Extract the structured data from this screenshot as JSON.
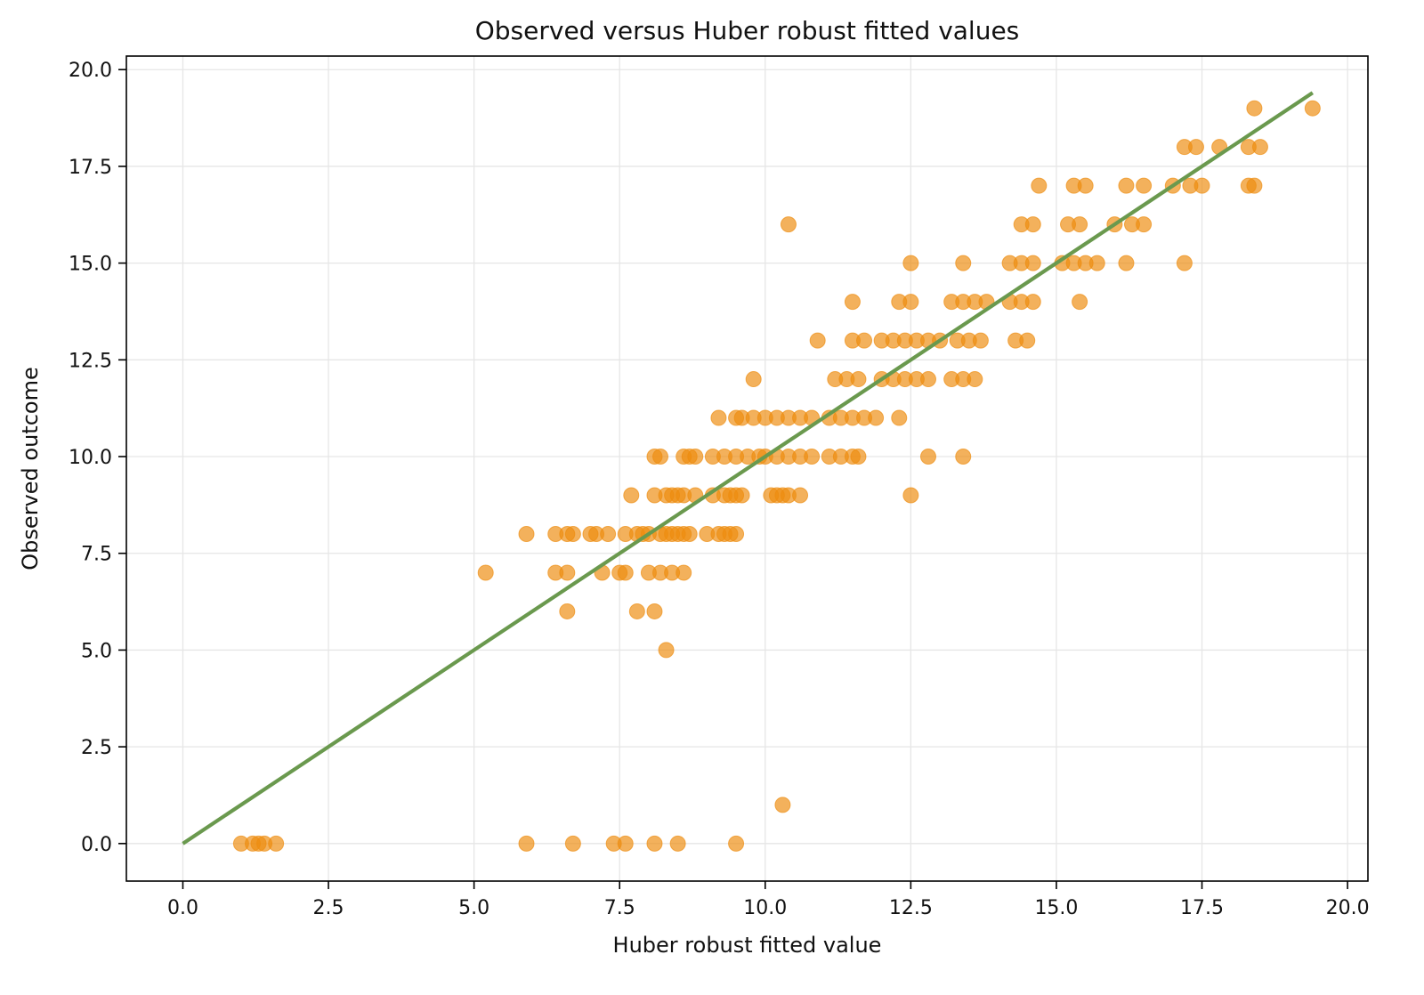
{
  "chart_data": {
    "type": "scatter",
    "title": "Observed versus Huber robust fitted values",
    "xlabel": "Huber robust fitted value",
    "ylabel": "Observed outcome",
    "xlim": [
      -0.97,
      20.35
    ],
    "ylim": [
      -0.97,
      20.35
    ],
    "x_ticks": [
      0.0,
      2.5,
      5.0,
      7.5,
      10.0,
      12.5,
      15.0,
      17.5,
      20.0
    ],
    "x_tick_labels": [
      "0.0",
      "2.5",
      "5.0",
      "7.5",
      "10.0",
      "12.5",
      "15.0",
      "17.5",
      "20.0"
    ],
    "y_ticks": [
      0.0,
      2.5,
      5.0,
      7.5,
      10.0,
      12.5,
      15.0,
      17.5,
      20.0
    ],
    "y_tick_labels": [
      "0.0",
      "2.5",
      "5.0",
      "7.5",
      "10.0",
      "12.5",
      "15.0",
      "17.5",
      "20.0"
    ],
    "grid": true,
    "legend": false,
    "colors": {
      "points": "#ee8c0f",
      "line": "#6a994e"
    },
    "series": [
      {
        "type": "scatter",
        "points": [
          [
            1.0,
            0
          ],
          [
            1.2,
            0
          ],
          [
            1.3,
            0
          ],
          [
            1.4,
            0
          ],
          [
            1.6,
            0
          ],
          [
            5.9,
            0
          ],
          [
            6.7,
            0
          ],
          [
            7.4,
            0
          ],
          [
            7.6,
            0
          ],
          [
            8.1,
            0
          ],
          [
            8.5,
            0
          ],
          [
            9.5,
            0
          ],
          [
            10.3,
            1
          ],
          [
            8.3,
            5
          ],
          [
            6.6,
            6
          ],
          [
            7.8,
            6
          ],
          [
            8.1,
            6
          ],
          [
            5.2,
            7
          ],
          [
            6.4,
            7
          ],
          [
            6.6,
            7
          ],
          [
            7.2,
            7
          ],
          [
            7.5,
            7
          ],
          [
            7.6,
            7
          ],
          [
            8.0,
            7
          ],
          [
            8.2,
            7
          ],
          [
            8.4,
            7
          ],
          [
            8.6,
            7
          ],
          [
            5.9,
            8
          ],
          [
            6.4,
            8
          ],
          [
            6.6,
            8
          ],
          [
            6.7,
            8
          ],
          [
            7.0,
            8
          ],
          [
            7.1,
            8
          ],
          [
            7.3,
            8
          ],
          [
            7.6,
            8
          ],
          [
            7.8,
            8
          ],
          [
            7.9,
            8
          ],
          [
            8.0,
            8
          ],
          [
            8.2,
            8
          ],
          [
            8.3,
            8
          ],
          [
            8.4,
            8
          ],
          [
            8.5,
            8
          ],
          [
            8.6,
            8
          ],
          [
            8.7,
            8
          ],
          [
            9.0,
            8
          ],
          [
            9.2,
            8
          ],
          [
            9.3,
            8
          ],
          [
            9.4,
            8
          ],
          [
            9.5,
            8
          ],
          [
            7.7,
            9
          ],
          [
            8.1,
            9
          ],
          [
            8.3,
            9
          ],
          [
            8.4,
            9
          ],
          [
            8.5,
            9
          ],
          [
            8.6,
            9
          ],
          [
            8.8,
            9
          ],
          [
            9.1,
            9
          ],
          [
            9.3,
            9
          ],
          [
            9.4,
            9
          ],
          [
            9.5,
            9
          ],
          [
            9.6,
            9
          ],
          [
            10.1,
            9
          ],
          [
            10.2,
            9
          ],
          [
            10.3,
            9
          ],
          [
            10.4,
            9
          ],
          [
            10.6,
            9
          ],
          [
            12.5,
            9
          ],
          [
            8.1,
            10
          ],
          [
            8.2,
            10
          ],
          [
            8.6,
            10
          ],
          [
            8.7,
            10
          ],
          [
            8.8,
            10
          ],
          [
            9.1,
            10
          ],
          [
            9.3,
            10
          ],
          [
            9.5,
            10
          ],
          [
            9.7,
            10
          ],
          [
            9.9,
            10
          ],
          [
            10.0,
            10
          ],
          [
            10.2,
            10
          ],
          [
            10.4,
            10
          ],
          [
            10.6,
            10
          ],
          [
            10.8,
            10
          ],
          [
            11.1,
            10
          ],
          [
            11.3,
            10
          ],
          [
            11.5,
            10
          ],
          [
            11.6,
            10
          ],
          [
            12.8,
            10
          ],
          [
            13.4,
            10
          ],
          [
            9.2,
            11
          ],
          [
            9.5,
            11
          ],
          [
            9.6,
            11
          ],
          [
            9.8,
            11
          ],
          [
            10.0,
            11
          ],
          [
            10.2,
            11
          ],
          [
            10.4,
            11
          ],
          [
            10.6,
            11
          ],
          [
            10.8,
            11
          ],
          [
            11.1,
            11
          ],
          [
            11.3,
            11
          ],
          [
            11.5,
            11
          ],
          [
            11.7,
            11
          ],
          [
            11.9,
            11
          ],
          [
            12.3,
            11
          ],
          [
            9.8,
            12
          ],
          [
            11.2,
            12
          ],
          [
            11.4,
            12
          ],
          [
            11.6,
            12
          ],
          [
            12.0,
            12
          ],
          [
            12.2,
            12
          ],
          [
            12.4,
            12
          ],
          [
            12.6,
            12
          ],
          [
            12.8,
            12
          ],
          [
            13.2,
            12
          ],
          [
            13.4,
            12
          ],
          [
            13.6,
            12
          ],
          [
            10.9,
            13
          ],
          [
            11.5,
            13
          ],
          [
            11.7,
            13
          ],
          [
            12.0,
            13
          ],
          [
            12.2,
            13
          ],
          [
            12.4,
            13
          ],
          [
            12.6,
            13
          ],
          [
            12.8,
            13
          ],
          [
            13.0,
            13
          ],
          [
            13.3,
            13
          ],
          [
            13.5,
            13
          ],
          [
            13.7,
            13
          ],
          [
            14.3,
            13
          ],
          [
            14.5,
            13
          ],
          [
            11.5,
            14
          ],
          [
            12.3,
            14
          ],
          [
            12.5,
            14
          ],
          [
            13.2,
            14
          ],
          [
            13.4,
            14
          ],
          [
            13.6,
            14
          ],
          [
            13.8,
            14
          ],
          [
            14.2,
            14
          ],
          [
            14.4,
            14
          ],
          [
            14.6,
            14
          ],
          [
            15.4,
            14
          ],
          [
            12.5,
            15
          ],
          [
            13.4,
            15
          ],
          [
            14.2,
            15
          ],
          [
            14.4,
            15
          ],
          [
            14.6,
            15
          ],
          [
            15.1,
            15
          ],
          [
            15.3,
            15
          ],
          [
            15.5,
            15
          ],
          [
            15.7,
            15
          ],
          [
            16.2,
            15
          ],
          [
            17.2,
            15
          ],
          [
            10.4,
            16
          ],
          [
            14.4,
            16
          ],
          [
            14.6,
            16
          ],
          [
            15.2,
            16
          ],
          [
            15.4,
            16
          ],
          [
            16.0,
            16
          ],
          [
            16.3,
            16
          ],
          [
            16.5,
            16
          ],
          [
            14.7,
            17
          ],
          [
            15.3,
            17
          ],
          [
            15.5,
            17
          ],
          [
            16.2,
            17
          ],
          [
            16.5,
            17
          ],
          [
            17.0,
            17
          ],
          [
            17.3,
            17
          ],
          [
            17.5,
            17
          ],
          [
            18.3,
            17
          ],
          [
            18.4,
            17
          ],
          [
            17.2,
            18
          ],
          [
            17.4,
            18
          ],
          [
            17.8,
            18
          ],
          [
            18.3,
            18
          ],
          [
            18.5,
            18
          ],
          [
            18.4,
            19
          ],
          [
            19.4,
            19
          ]
        ]
      },
      {
        "type": "line",
        "x": [
          0.0,
          19.4
        ],
        "y": [
          0.0,
          19.4
        ]
      }
    ]
  }
}
